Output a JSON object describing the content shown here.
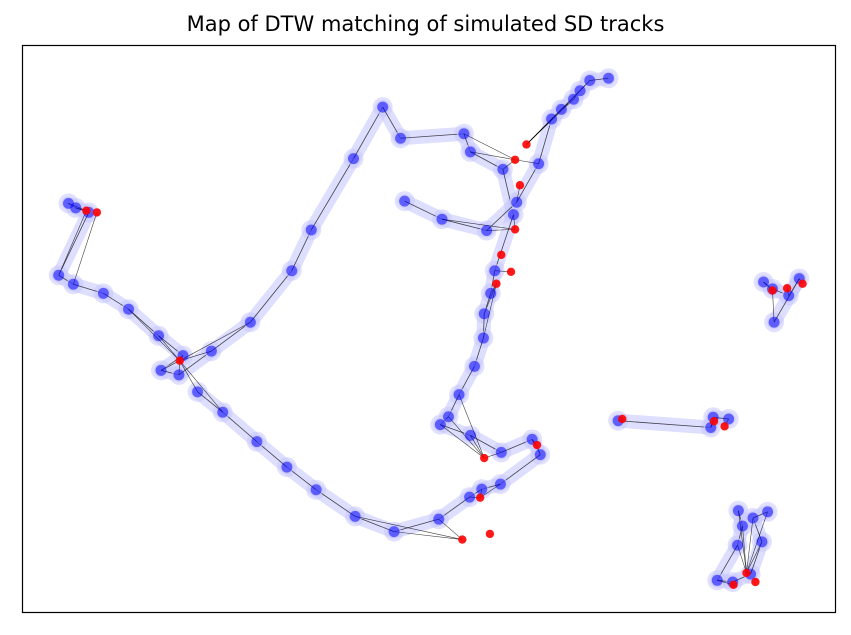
{
  "chart_data": {
    "type": "scatter",
    "title": "Map of DTW matching of simulated SD tracks",
    "xlabel": "",
    "ylabel": "",
    "axes_visible": false,
    "grid": false,
    "xlim": [
      0,
      100
    ],
    "ylim": [
      0,
      100
    ],
    "colors": {
      "track_a_points": "#0000ff",
      "track_b_points": "#ff0000",
      "match_lines": "#000000",
      "halo": "#c8c8ff"
    },
    "series": [
      {
        "role": "track_a",
        "points": [
          [
            5.6,
            72.2
          ],
          [
            6.5,
            71.4
          ],
          [
            8.1,
            70.6
          ],
          [
            4.4,
            59.5
          ],
          [
            6.2,
            57.9
          ],
          [
            9.9,
            56.3
          ],
          [
            13.0,
            53.5
          ],
          [
            16.7,
            48.8
          ],
          [
            19.7,
            45.3
          ],
          [
            17.0,
            42.7
          ],
          [
            19.2,
            41.9
          ],
          [
            23.2,
            46.1
          ],
          [
            28.0,
            51.2
          ],
          [
            33.1,
            60.3
          ],
          [
            35.5,
            67.5
          ],
          [
            40.7,
            80.1
          ],
          [
            44.3,
            89.2
          ],
          [
            46.5,
            83.7
          ],
          [
            54.3,
            84.5
          ],
          [
            55.1,
            81.3
          ],
          [
            59.1,
            78.2
          ],
          [
            60.4,
            70.2
          ],
          [
            58.1,
            60.3
          ],
          [
            57.6,
            56.3
          ],
          [
            56.8,
            52.7
          ],
          [
            56.7,
            48.4
          ],
          [
            55.6,
            43.4
          ],
          [
            53.7,
            38.4
          ],
          [
            52.4,
            34.5
          ],
          [
            51.4,
            33.1
          ],
          [
            55.1,
            31.2
          ],
          [
            58.9,
            28.2
          ],
          [
            62.7,
            30.5
          ],
          [
            63.7,
            27.8
          ],
          [
            58.8,
            22.6
          ],
          [
            56.5,
            21.7
          ],
          [
            55.0,
            20.3
          ],
          [
            51.2,
            16.4
          ],
          [
            45.7,
            14.2
          ],
          [
            40.9,
            16.9
          ],
          [
            36.1,
            21.6
          ],
          [
            32.5,
            25.6
          ],
          [
            28.8,
            30.1
          ],
          [
            24.6,
            35.3
          ],
          [
            21.5,
            38.9
          ],
          [
            47.0,
            72.6
          ],
          [
            51.6,
            69.4
          ],
          [
            57.1,
            67.4
          ],
          [
            60.8,
            72.4
          ],
          [
            63.5,
            79.2
          ],
          [
            65.1,
            87.1
          ],
          [
            66.3,
            88.8
          ],
          [
            67.8,
            90.6
          ],
          [
            68.6,
            92.1
          ],
          [
            69.8,
            93.9
          ],
          [
            72.1,
            94.3
          ],
          [
            91.2,
            58.3
          ],
          [
            92.3,
            57.1
          ],
          [
            94.3,
            55.9
          ],
          [
            95.6,
            58.9
          ],
          [
            92.5,
            51.2
          ],
          [
            73.3,
            33.8
          ],
          [
            84.7,
            32.6
          ],
          [
            85.0,
            34.4
          ],
          [
            86.9,
            34.1
          ],
          [
            88.1,
            17.9
          ],
          [
            88.6,
            15.2
          ],
          [
            88.0,
            11.8
          ],
          [
            85.5,
            5.6
          ],
          [
            87.4,
            5.3
          ],
          [
            89.6,
            6.7
          ],
          [
            91.0,
            12.4
          ],
          [
            89.9,
            16.6
          ],
          [
            91.7,
            17.7
          ]
        ]
      },
      {
        "role": "track_b",
        "points": [
          [
            7.8,
            70.9
          ],
          [
            9.1,
            70.6
          ],
          [
            19.3,
            44.4
          ],
          [
            58.3,
            58.0
          ],
          [
            60.1,
            60.1
          ],
          [
            58.9,
            63.1
          ],
          [
            60.6,
            67.6
          ],
          [
            61.2,
            75.4
          ],
          [
            60.6,
            79.9
          ],
          [
            62.0,
            82.6
          ],
          [
            56.8,
            27.2
          ],
          [
            63.3,
            29.5
          ],
          [
            92.3,
            56.8
          ],
          [
            94.1,
            57.2
          ],
          [
            96.0,
            58.0
          ],
          [
            73.8,
            34.1
          ],
          [
            85.1,
            33.7
          ],
          [
            86.4,
            32.8
          ],
          [
            87.5,
            4.8
          ],
          [
            89.1,
            6.9
          ],
          [
            90.2,
            5.3
          ],
          [
            57.5,
            13.8
          ],
          [
            54.1,
            12.8
          ],
          [
            56.3,
            20.2
          ]
        ]
      }
    ]
  }
}
